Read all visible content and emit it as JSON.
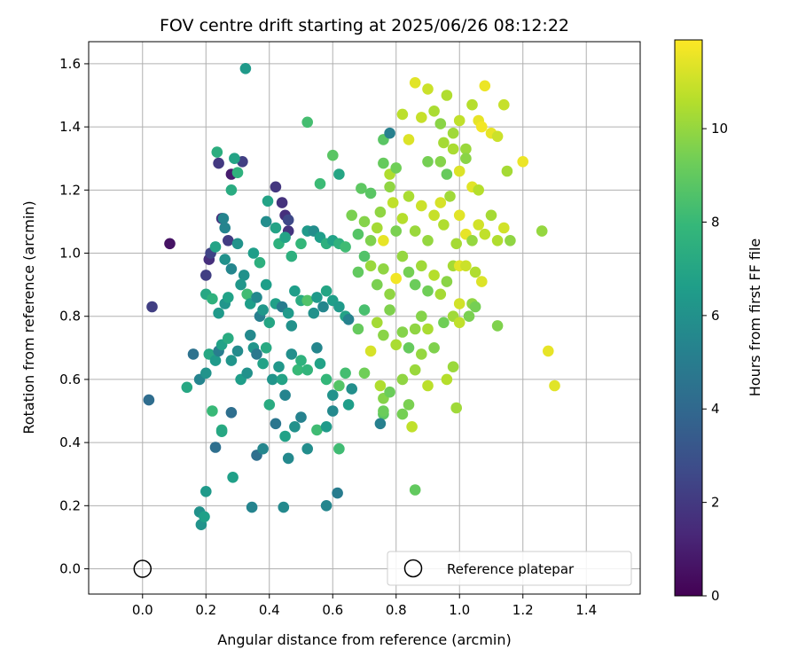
{
  "chart_data": {
    "type": "scatter",
    "title": "FOV centre drift starting at 2025/06/26 08:12:22",
    "xlabel": "Angular distance from reference (arcmin)",
    "ylabel": "Rotation from reference (arcmin)",
    "xlim": [
      -0.17,
      1.57
    ],
    "ylim": [
      -0.08,
      1.67
    ],
    "xticks": [
      "0.0",
      "0.2",
      "0.4",
      "0.6",
      "0.8",
      "1.0",
      "1.2",
      "1.4"
    ],
    "xtick_values": [
      0.0,
      0.2,
      0.4,
      0.6,
      0.8,
      1.0,
      1.2,
      1.4
    ],
    "yticks": [
      "0.0",
      "0.2",
      "0.4",
      "0.6",
      "0.8",
      "1.0",
      "1.2",
      "1.4",
      "1.6"
    ],
    "ytick_values": [
      0.0,
      0.2,
      0.4,
      0.6,
      0.8,
      1.0,
      1.2,
      1.4,
      1.6
    ],
    "grid": true,
    "colormap": "viridis",
    "colorbar": {
      "label": "Hours from first FF file",
      "range": [
        0,
        11.9
      ],
      "ticks": [
        "0",
        "2",
        "4",
        "6",
        "8",
        "10"
      ],
      "tick_values": [
        0,
        2,
        4,
        6,
        8,
        10
      ]
    },
    "reference": {
      "label": "Reference platepar",
      "x": 0.0,
      "y": 0.0
    },
    "legend": {
      "placement": "lower-right",
      "entries": [
        "Reference platepar"
      ]
    },
    "points": [
      [
        0.086,
        1.03,
        0.6
      ],
      [
        0.03,
        0.83,
        2.2
      ],
      [
        0.02,
        0.535,
        4.2
      ],
      [
        0.2,
        0.93,
        2.2
      ],
      [
        0.21,
        0.98,
        1.6
      ],
      [
        0.215,
        1.0,
        2.4
      ],
      [
        0.24,
        1.285,
        2.0
      ],
      [
        0.25,
        1.11,
        1.5
      ],
      [
        0.27,
        1.04,
        2.1
      ],
      [
        0.28,
        1.25,
        0.9
      ],
      [
        0.315,
        1.29,
        2.2
      ],
      [
        0.42,
        1.21,
        1.9
      ],
      [
        0.44,
        1.16,
        1.7
      ],
      [
        0.45,
        1.12,
        1.6
      ],
      [
        0.46,
        1.105,
        2.6
      ],
      [
        0.46,
        1.07,
        1.8
      ],
      [
        0.235,
        1.32,
        7.4
      ],
      [
        0.29,
        1.3,
        6.9
      ],
      [
        0.3,
        1.255,
        7.6
      ],
      [
        0.28,
        1.2,
        7.3
      ],
      [
        0.325,
        1.585,
        6.4
      ],
      [
        0.52,
        1.415,
        8.3
      ],
      [
        0.56,
        1.22,
        8.1
      ],
      [
        0.6,
        1.31,
        8.8
      ],
      [
        0.62,
        1.25,
        7.0
      ],
      [
        0.69,
        1.205,
        8.9
      ],
      [
        0.72,
        1.19,
        8.8
      ],
      [
        0.255,
        1.11,
        5.4
      ],
      [
        0.26,
        1.08,
        5.4
      ],
      [
        0.23,
        1.02,
        6.9
      ],
      [
        0.26,
        0.98,
        6.0
      ],
      [
        0.28,
        0.95,
        5.5
      ],
      [
        0.3,
        1.03,
        6.1
      ],
      [
        0.32,
        0.93,
        6.0
      ],
      [
        0.35,
        1.0,
        6.6
      ],
      [
        0.37,
        0.97,
        7.5
      ],
      [
        0.39,
        1.1,
        5.8
      ],
      [
        0.395,
        1.165,
        6.9
      ],
      [
        0.42,
        1.08,
        6.9
      ],
      [
        0.43,
        1.03,
        7.6
      ],
      [
        0.45,
        1.05,
        6.9
      ],
      [
        0.47,
        0.99,
        7.5
      ],
      [
        0.5,
        1.03,
        7.9
      ],
      [
        0.52,
        1.07,
        6.4
      ],
      [
        0.54,
        1.07,
        5.8
      ],
      [
        0.56,
        1.05,
        6.6
      ],
      [
        0.58,
        1.03,
        7.5
      ],
      [
        0.6,
        1.04,
        6.8
      ],
      [
        0.62,
        1.03,
        7.6
      ],
      [
        0.64,
        1.02,
        8.2
      ],
      [
        0.2,
        0.87,
        7.1
      ],
      [
        0.22,
        0.855,
        7.6
      ],
      [
        0.24,
        0.81,
        6.4
      ],
      [
        0.26,
        0.84,
        6.2
      ],
      [
        0.27,
        0.86,
        6.8
      ],
      [
        0.31,
        0.9,
        6.3
      ],
      [
        0.33,
        0.87,
        8.2
      ],
      [
        0.34,
        0.84,
        6.6
      ],
      [
        0.36,
        0.86,
        5.6
      ],
      [
        0.37,
        0.8,
        5.1
      ],
      [
        0.38,
        0.82,
        6.3
      ],
      [
        0.39,
        0.9,
        6.6
      ],
      [
        0.4,
        0.78,
        7.0
      ],
      [
        0.42,
        0.84,
        6.7
      ],
      [
        0.44,
        0.83,
        5.0
      ],
      [
        0.46,
        0.81,
        6.4
      ],
      [
        0.47,
        0.77,
        6.0
      ],
      [
        0.48,
        0.88,
        6.6
      ],
      [
        0.5,
        0.85,
        7.3
      ],
      [
        0.52,
        0.85,
        8.6
      ],
      [
        0.54,
        0.81,
        6.0
      ],
      [
        0.55,
        0.86,
        6.4
      ],
      [
        0.57,
        0.83,
        5.5
      ],
      [
        0.58,
        0.88,
        7.0
      ],
      [
        0.6,
        0.85,
        6.6
      ],
      [
        0.62,
        0.83,
        6.4
      ],
      [
        0.64,
        0.8,
        6.9
      ],
      [
        0.65,
        0.79,
        5.3
      ],
      [
        0.18,
        0.6,
        5.4
      ],
      [
        0.2,
        0.62,
        6.1
      ],
      [
        0.21,
        0.68,
        7.1
      ],
      [
        0.23,
        0.66,
        6.4
      ],
      [
        0.24,
        0.69,
        5.1
      ],
      [
        0.25,
        0.71,
        6.8
      ],
      [
        0.27,
        0.73,
        7.3
      ],
      [
        0.28,
        0.66,
        6.2
      ],
      [
        0.3,
        0.69,
        5.7
      ],
      [
        0.31,
        0.6,
        6.6
      ],
      [
        0.33,
        0.62,
        6.0
      ],
      [
        0.34,
        0.74,
        5.6
      ],
      [
        0.35,
        0.7,
        6.2
      ],
      [
        0.36,
        0.68,
        4.8
      ],
      [
        0.38,
        0.65,
        6.8
      ],
      [
        0.39,
        0.7,
        7.2
      ],
      [
        0.41,
        0.6,
        6.2
      ],
      [
        0.43,
        0.64,
        6.3
      ],
      [
        0.44,
        0.6,
        6.9
      ],
      [
        0.45,
        0.55,
        5.4
      ],
      [
        0.47,
        0.68,
        5.9
      ],
      [
        0.49,
        0.63,
        8.0
      ],
      [
        0.5,
        0.66,
        7.6
      ],
      [
        0.52,
        0.63,
        7.8
      ],
      [
        0.55,
        0.7,
        5.5
      ],
      [
        0.56,
        0.65,
        6.8
      ],
      [
        0.58,
        0.6,
        7.9
      ],
      [
        0.6,
        0.55,
        6.1
      ],
      [
        0.62,
        0.58,
        8.7
      ],
      [
        0.64,
        0.62,
        8.3
      ],
      [
        0.66,
        0.57,
        5.9
      ],
      [
        0.16,
        0.68,
        4.5
      ],
      [
        0.14,
        0.575,
        7.1
      ],
      [
        0.22,
        0.5,
        8.0
      ],
      [
        0.25,
        0.44,
        7.4
      ],
      [
        0.28,
        0.495,
        4.3
      ],
      [
        0.23,
        0.385,
        4.3
      ],
      [
        0.25,
        0.435,
        7.1
      ],
      [
        0.36,
        0.36,
        4.3
      ],
      [
        0.38,
        0.38,
        5.5
      ],
      [
        0.4,
        0.52,
        7.3
      ],
      [
        0.42,
        0.46,
        4.7
      ],
      [
        0.45,
        0.42,
        6.8
      ],
      [
        0.46,
        0.35,
        5.6
      ],
      [
        0.48,
        0.45,
        6.0
      ],
      [
        0.5,
        0.48,
        5.3
      ],
      [
        0.52,
        0.38,
        5.8
      ],
      [
        0.55,
        0.44,
        8.2
      ],
      [
        0.58,
        0.45,
        6.4
      ],
      [
        0.6,
        0.5,
        5.6
      ],
      [
        0.62,
        0.38,
        8.2
      ],
      [
        0.65,
        0.52,
        6.6
      ],
      [
        0.2,
        0.245,
        6.4
      ],
      [
        0.18,
        0.18,
        6.0
      ],
      [
        0.185,
        0.14,
        6.1
      ],
      [
        0.195,
        0.165,
        6.7
      ],
      [
        0.285,
        0.29,
        6.7
      ],
      [
        0.345,
        0.195,
        5.4
      ],
      [
        0.445,
        0.195,
        5.6
      ],
      [
        0.58,
        0.2,
        5.5
      ],
      [
        0.615,
        0.24,
        5.0
      ],
      [
        0.66,
        1.12,
        9.5
      ],
      [
        0.68,
        1.06,
        8.7
      ],
      [
        0.7,
        1.1,
        9.7
      ],
      [
        0.72,
        1.04,
        9.6
      ],
      [
        0.74,
        1.08,
        10.3
      ],
      [
        0.75,
        1.13,
        9.9
      ],
      [
        0.76,
        1.04,
        11.5
      ],
      [
        0.78,
        1.21,
        9.9
      ],
      [
        0.79,
        1.16,
        10.8
      ],
      [
        0.8,
        1.07,
        9.5
      ],
      [
        0.82,
        1.11,
        10.6
      ],
      [
        0.84,
        1.18,
        10.4
      ],
      [
        0.86,
        1.07,
        10.1
      ],
      [
        0.88,
        1.15,
        11.0
      ],
      [
        0.9,
        1.04,
        10.0
      ],
      [
        0.92,
        1.12,
        10.9
      ],
      [
        0.94,
        1.16,
        11.2
      ],
      [
        0.95,
        1.09,
        10.5
      ],
      [
        0.97,
        1.18,
        10.2
      ],
      [
        0.99,
        1.03,
        10.3
      ],
      [
        1.0,
        1.12,
        11.4
      ],
      [
        1.02,
        1.06,
        11.5
      ],
      [
        1.04,
        1.04,
        10.0
      ],
      [
        1.06,
        1.09,
        11.1
      ],
      [
        1.08,
        1.06,
        10.8
      ],
      [
        1.1,
        1.12,
        10.3
      ],
      [
        1.12,
        1.04,
        10.5
      ],
      [
        1.14,
        1.08,
        11.1
      ],
      [
        1.16,
        1.04,
        9.9
      ],
      [
        0.68,
        0.94,
        9.0
      ],
      [
        0.7,
        0.99,
        8.6
      ],
      [
        0.72,
        0.96,
        10.1
      ],
      [
        0.74,
        0.9,
        9.5
      ],
      [
        0.76,
        0.95,
        9.9
      ],
      [
        0.78,
        0.87,
        9.9
      ],
      [
        0.8,
        0.92,
        11.7
      ],
      [
        0.82,
        0.99,
        10.0
      ],
      [
        0.84,
        0.94,
        9.4
      ],
      [
        0.86,
        0.9,
        9.2
      ],
      [
        0.88,
        0.96,
        10.2
      ],
      [
        0.9,
        0.88,
        9.3
      ],
      [
        0.92,
        0.93,
        10.6
      ],
      [
        0.94,
        0.87,
        10.3
      ],
      [
        0.96,
        0.91,
        9.8
      ],
      [
        0.98,
        0.96,
        10.3
      ],
      [
        1.0,
        0.96,
        11.4
      ],
      [
        1.02,
        0.96,
        11.0
      ],
      [
        1.05,
        0.94,
        10.5
      ],
      [
        1.07,
        0.91,
        11.3
      ],
      [
        1.0,
        0.84,
        11.1
      ],
      [
        1.04,
        0.84,
        9.9
      ],
      [
        0.68,
        0.76,
        9.1
      ],
      [
        0.7,
        0.82,
        8.4
      ],
      [
        0.72,
        0.69,
        11.2
      ],
      [
        0.74,
        0.78,
        10.3
      ],
      [
        0.76,
        0.74,
        9.8
      ],
      [
        0.78,
        0.82,
        9.6
      ],
      [
        0.8,
        0.71,
        10.4
      ],
      [
        0.82,
        0.75,
        9.7
      ],
      [
        0.84,
        0.7,
        9.1
      ],
      [
        0.86,
        0.76,
        9.9
      ],
      [
        0.88,
        0.8,
        9.7
      ],
      [
        0.9,
        0.76,
        10.4
      ],
      [
        0.92,
        0.7,
        9.6
      ],
      [
        0.95,
        0.78,
        9.3
      ],
      [
        0.98,
        0.8,
        10.2
      ],
      [
        1.0,
        0.78,
        10.8
      ],
      [
        1.03,
        0.8,
        9.5
      ],
      [
        1.05,
        0.83,
        9.4
      ],
      [
        1.12,
        0.77,
        9.6
      ],
      [
        1.28,
        0.69,
        11.5
      ],
      [
        1.3,
        0.58,
        11.4
      ],
      [
        0.7,
        0.62,
        9.3
      ],
      [
        0.75,
        0.58,
        10.5
      ],
      [
        0.76,
        0.54,
        9.7
      ],
      [
        0.78,
        0.56,
        9.2
      ],
      [
        0.82,
        0.6,
        9.9
      ],
      [
        0.84,
        0.52,
        9.5
      ],
      [
        0.86,
        0.63,
        10.1
      ],
      [
        0.88,
        0.68,
        10.0
      ],
      [
        0.9,
        0.58,
        10.7
      ],
      [
        0.96,
        0.6,
        10.6
      ],
      [
        0.98,
        0.64,
        10.1
      ],
      [
        0.99,
        0.51,
        10.2
      ],
      [
        0.76,
        0.49,
        8.9
      ],
      [
        0.85,
        0.45,
        10.8
      ],
      [
        0.82,
        0.49,
        9.4
      ],
      [
        0.86,
        0.25,
        9.0
      ],
      [
        0.75,
        0.46,
        5.2
      ],
      [
        0.76,
        0.5,
        9.2
      ],
      [
        0.76,
        1.36,
        8.8
      ],
      [
        0.78,
        1.38,
        5.2
      ],
      [
        0.76,
        1.285,
        9.1
      ],
      [
        0.78,
        1.25,
        10.5
      ],
      [
        0.8,
        1.27,
        9.3
      ],
      [
        0.82,
        1.44,
        10.7
      ],
      [
        0.84,
        1.36,
        11.3
      ],
      [
        0.86,
        1.54,
        11.4
      ],
      [
        0.88,
        1.43,
        10.9
      ],
      [
        0.9,
        1.52,
        11.0
      ],
      [
        0.92,
        1.45,
        10.4
      ],
      [
        0.94,
        1.41,
        9.8
      ],
      [
        0.96,
        1.5,
        10.5
      ],
      [
        0.98,
        1.38,
        10.2
      ],
      [
        1.0,
        1.42,
        10.8
      ],
      [
        1.02,
        1.33,
        10.1
      ],
      [
        1.04,
        1.47,
        10.6
      ],
      [
        1.06,
        1.42,
        11.5
      ],
      [
        1.08,
        1.53,
        11.6
      ],
      [
        1.1,
        1.38,
        11.5
      ],
      [
        1.12,
        1.37,
        11.0
      ],
      [
        1.14,
        1.47,
        10.9
      ],
      [
        1.15,
        1.26,
        10.3
      ],
      [
        1.2,
        1.29,
        11.6
      ],
      [
        1.26,
        1.07,
        10.0
      ],
      [
        0.9,
        1.29,
        9.4
      ],
      [
        0.94,
        1.29,
        9.7
      ],
      [
        0.96,
        1.25,
        9.1
      ],
      [
        0.98,
        1.33,
        10.4
      ],
      [
        1.0,
        1.26,
        11.3
      ],
      [
        1.02,
        1.3,
        9.8
      ],
      [
        1.04,
        1.21,
        11.4
      ],
      [
        1.06,
        1.2,
        10.6
      ],
      [
        0.95,
        1.35,
        10.3
      ],
      [
        1.07,
        1.4,
        11.7
      ]
    ]
  }
}
